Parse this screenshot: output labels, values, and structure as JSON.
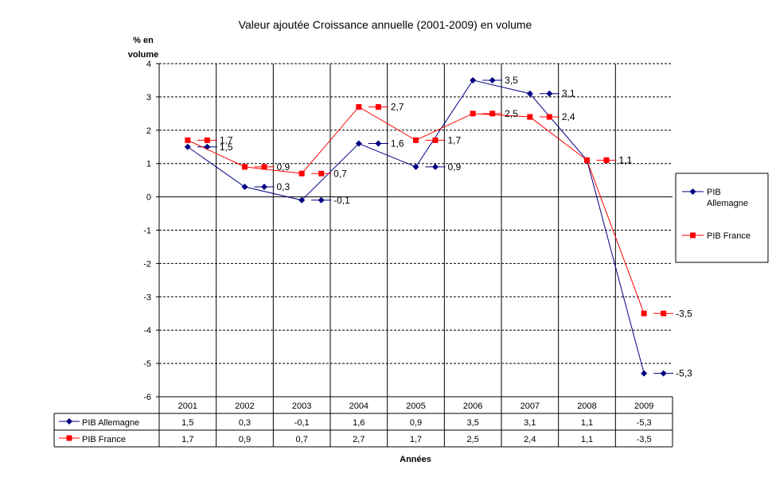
{
  "chart_data": {
    "type": "line",
    "title": "Valeur ajoutée  Croissance annuelle (2001-2009) en volume",
    "ylabel_line1": "% en",
    "ylabel_line2": "volume",
    "xlabel": "Années",
    "categories": [
      "2001",
      "2002",
      "2003",
      "2004",
      "2005",
      "2006",
      "2007",
      "2008",
      "2009"
    ],
    "ylim": [
      -6,
      4
    ],
    "yticks": [
      4,
      3,
      2,
      1,
      0,
      -1,
      -2,
      -3,
      -4,
      -5,
      -6
    ],
    "grid": true,
    "legend_position": "right",
    "series": [
      {
        "name": "PIB Allemagne",
        "legend_line1": "PIB",
        "legend_line2": "Allemagne",
        "values": [
          1.5,
          0.3,
          -0.1,
          1.6,
          0.9,
          3.5,
          3.1,
          1.1,
          -5.3
        ],
        "labels": [
          "1,5",
          "0,3",
          "-0,1",
          "1,6",
          "0,9",
          "3,5",
          "3,1",
          "1,1",
          "-5,3"
        ],
        "color": "#000080",
        "marker": "diamond"
      },
      {
        "name": "PIB France",
        "legend_line1": "PIB France",
        "legend_line2": "",
        "values": [
          1.7,
          0.9,
          0.7,
          2.7,
          1.7,
          2.5,
          2.4,
          1.1,
          -3.5
        ],
        "labels": [
          "1,7",
          "0,9",
          "0,7",
          "2,7",
          "1,7",
          "2,5",
          "2,4",
          "1,1",
          "-3,5"
        ],
        "color": "#ff0000",
        "marker": "square"
      }
    ]
  }
}
